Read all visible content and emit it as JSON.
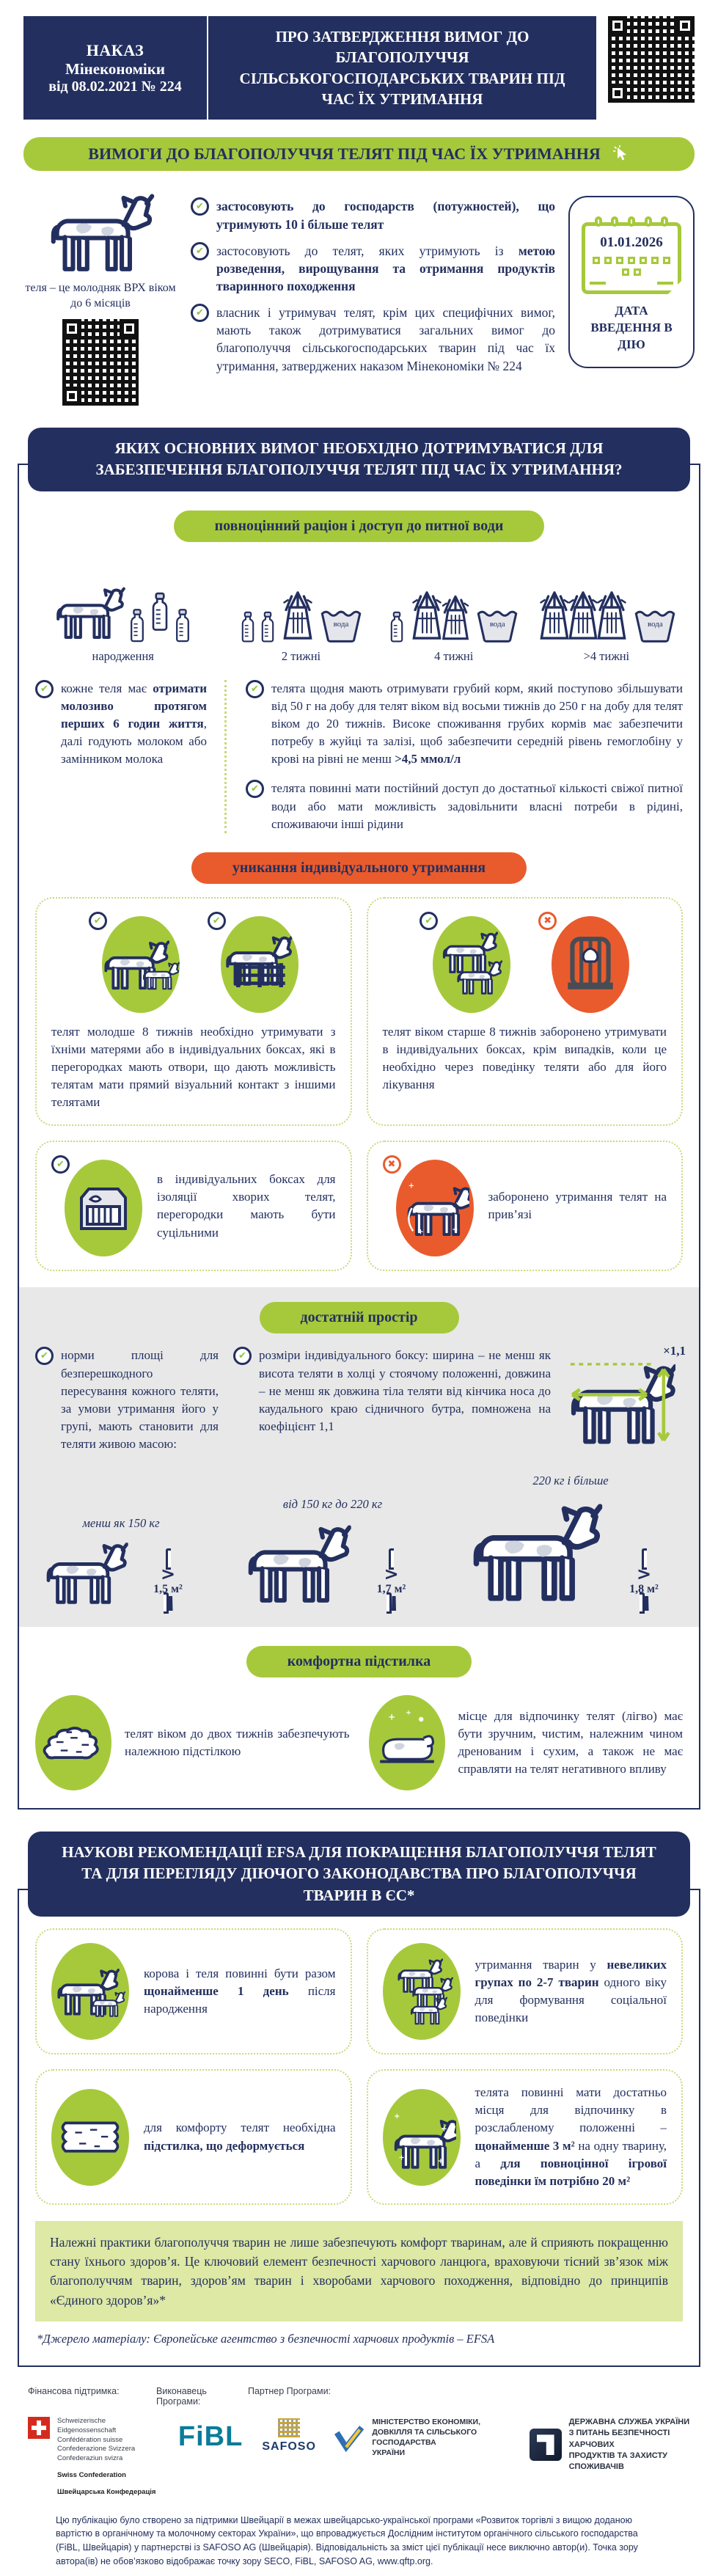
{
  "header": {
    "order": [
      "НАКАЗ",
      "Мінекономіки",
      "від 08.02.2021 № 224"
    ],
    "title": "ПРО ЗАТВЕРДЖЕННЯ ВИМОГ ДО БЛАГОПОЛУЧЧЯ СІЛЬСЬКОГОСПОДАРСЬКИХ ТВАРИН ПІД ЧАС ЇХ УТРИМАННЯ"
  },
  "banner": {
    "title": "ВИМОГИ ДО БЛАГОПОЛУЧЧЯ ТЕЛЯТ ПІД ЧАС ЇХ УТРИМАННЯ"
  },
  "intro": {
    "caption": "теля – це молодняк ВРХ віком до 6 місяців",
    "bullets": [
      [
        {
          "t": "застосовують до господарств (потужностей), що утримують 10 і більше телят",
          "b": true
        }
      ],
      [
        {
          "t": "застосовують до телят, яких утримують із ",
          "b": false
        },
        {
          "t": "метою розведення, вирощування та отримання продуктів тваринного походження",
          "b": true
        }
      ],
      [
        {
          "t": "власник і утримувач телят, крім цих специфічних вимог, мають також дотримуватися загальних вимог до благополуччя сільськогосподарських тварин під час їх утримання, затверджених наказом Мінекономіки № 224",
          "b": false
        }
      ]
    ],
    "calendar": {
      "date": "01.01.2026",
      "label": "ДАТА ВВЕДЕННЯ В ДІЮ"
    }
  },
  "main": {
    "title": "ЯКИХ ОСНОВНИХ ВИМОГ НЕОБХІДНО ДОТРИМУВАТИСЯ ДЛЯ ЗАБЕЗПЕЧЕННЯ БЛАГОПОЛУЧЧЯ ТЕЛЯТ ПІД ЧАС ЇХ УТРИМАННЯ?",
    "ration": {
      "pill": "повноцінний раціон і доступ до питної води",
      "stages": [
        "народження",
        "2 тижні",
        "4 тижні",
        ">4 тижні"
      ],
      "water": "вода",
      "left": [
        {
          "t": "кожне теля має ",
          "b": false
        },
        {
          "t": "отримати молозиво протягом перших 6 годин життя",
          "b": true
        },
        {
          "t": ", далі годують молоком або замінником молока",
          "b": false
        }
      ],
      "right1": [
        {
          "t": "телята щодня мають отримувати грубий корм, який поступово збільшувати від 50 г на добу для телят віком від восьми тижнів до 250 г на добу для телят віком до 20 тижнів. Високе споживання грубих кормів має забезпечити потребу в жуйці та залізі, щоб забезпечити середній рівень гемоглобіну у крові на рівні не менш ",
          "b": false
        },
        {
          "t": ">4,5 ммол/л",
          "b": true
        }
      ],
      "right2": [
        {
          "t": "телята повинні мати постійний доступ до достатньої кількості свіжої питної води або мати можливість задовільнити власні потреби в рідині, споживаючи інші рідини",
          "b": false
        }
      ]
    },
    "individual": {
      "pill": "уникання індивідуального утримання",
      "card1": "телят молодше 8 тижнів необхідно утримувати з їхніми матерями або в індивідуальних боксах, які в перегородках мають отвори, що дають можливість телятам мати прямий візуальний контакт з іншими телятами",
      "card2": "телят віком старше 8 тижнів заборонено утримувати в індивідуальних боксах, крім випадків, коли це необхідно через поведінку теляти або для його лікування",
      "card3": "в індивідуальних боксах для ізоляції хворих телят, перегородки мають бути суцільними",
      "card4": "заборонено утримання телят на прив’язі"
    },
    "space": {
      "pill": "достатній простір",
      "left": "норми площі для безперешкодного пересування кожного теляти, за умови утримання його у групі, мають становити для теляти живою масою:",
      "right": "розміри індивідуального боксу: ширина – не менш як висота теляти в холці у стоячому положенні, довжина – не менш як довжина тіла теляти від кінчика носа до каудального краю сідничного бутра, помножена на коефіцієнт 1,1",
      "factor": "×1,1",
      "gt": ">",
      "weights": [
        {
          "label": "менш як 150 кг",
          "area": "1,5 м²"
        },
        {
          "label": "від 150 кг до 220 кг",
          "area": "1,7 м²"
        },
        {
          "label": "220 кг і більше",
          "area": "1,8 м²"
        }
      ]
    },
    "bedding": {
      "pill": "комфортна підстилка",
      "b1": "телят віком до двох тижнів забезпечують належною підстілкою",
      "b2": "місце для відпочинку телят (лігво) має бути зручним, чистим, належним чином дренованим і сухим, а також не має справляти на телят негативного впливу"
    }
  },
  "efsa": {
    "title": "НАУКОВІ РЕКОМЕНДАЦІЇ EFSA ДЛЯ ПОКРАЩЕННЯ БЛАГОПОЛУЧЧЯ ТЕЛЯТ ТА ДЛЯ ПЕРЕГЛЯДУ ДІЮЧОГО ЗАКОНОДАВСТВА ПРО БЛАГОПОЛУЧЧЯ ТВАРИН В ЄС*",
    "cards": [
      [
        {
          "t": "корова і теля повинні бути разом ",
          "b": false
        },
        {
          "t": "щонайменше 1 день",
          "b": true
        },
        {
          "t": " після народження",
          "b": false
        }
      ],
      [
        {
          "t": "утримання тварин у ",
          "b": false
        },
        {
          "t": "невеликих групах по 2-7 тварин",
          "b": true
        },
        {
          "t": " одного віку для формування соціальної поведінки",
          "b": false
        }
      ],
      [
        {
          "t": "для комфорту телят необхідна ",
          "b": false
        },
        {
          "t": "підстилка, що деформується",
          "b": true
        }
      ],
      [
        {
          "t": "телята повинні мати достатньо місця для відпочинку в розслабленому положенні – ",
          "b": false
        },
        {
          "t": "щонайменше 3 м²",
          "b": true
        },
        {
          "t": " на одну тварину, а ",
          "b": false
        },
        {
          "t": "для повноцінної ігрової поведінки їм потрібно 20 м²",
          "b": true
        }
      ]
    ],
    "note": "Належні практики благополуччя тварин не лише забезпечують комфорт тваринам, але й сприяють покращенню стану їхнього здоров’я. Це ключовий елемент безпечності харчового ланцюга, враховуючи тісний зв’язок між благополуччям тварин, здоров’ям тварин і хворобами харчового походження, відповідно до принципів «Єдиного здоров’я»*",
    "source": "*Джерело матеріалу: Європейське агентство з безпечності харчових продуктів – EFSA"
  },
  "footer": {
    "support_label": "Фінансова підтримка:",
    "executor_label": "Виконавець Програми:",
    "partner_label": "Партнер Програми:",
    "swiss_lines": [
      "Schweizerische Eidgenossenschaft",
      "Confédération suisse",
      "Confederazione Svizzera",
      "Confederaziun svizra"
    ],
    "swiss_bold": [
      "Swiss Confederation",
      "Швейцарська Конфедерація"
    ],
    "fibl": "FiBL",
    "safoso": "SAFOSO",
    "ministry_lines": [
      "МІНІСТЕРСТВО ЕКОНОМІКИ,",
      "ДОВКІЛЛЯ ТА СІЛЬСЬКОГО ГОСПОДАРСТВА",
      "УКРАЇНИ"
    ],
    "service_lines": [
      "ДЕРЖАВНА СЛУЖБА УКРАЇНИ",
      "З ПИТАНЬ БЕЗПЕЧНОСТІ ХАРЧОВИХ",
      "ПРОДУКТІВ ТА ЗАХИСТУ СПОЖИВАЧІВ"
    ],
    "disclaimer": "Цю публікацію було створено за підтримки Швейцарії в межах швейцарсько-української програми «Розвиток торгівлі з вищою доданою вартістю в органічному та молочному секторах України», що впроваджується Дослідним інститутом органічного сільського господарства (FiBL, Швейцарія) у партнерстві із SAFOSO AG (Швейцарія). Відповідальність за зміст цієї публікації несе виключно автор(и). Точка зору автора(ів) не обов’язково відображає точку зору SECO, FiBL, SAFOSO AG, www.qftp.org."
  },
  "colors": {
    "navy": "#232f5e",
    "green": "#a6c93b",
    "orange": "#e95b2d",
    "light_green": "#dde9a5"
  }
}
